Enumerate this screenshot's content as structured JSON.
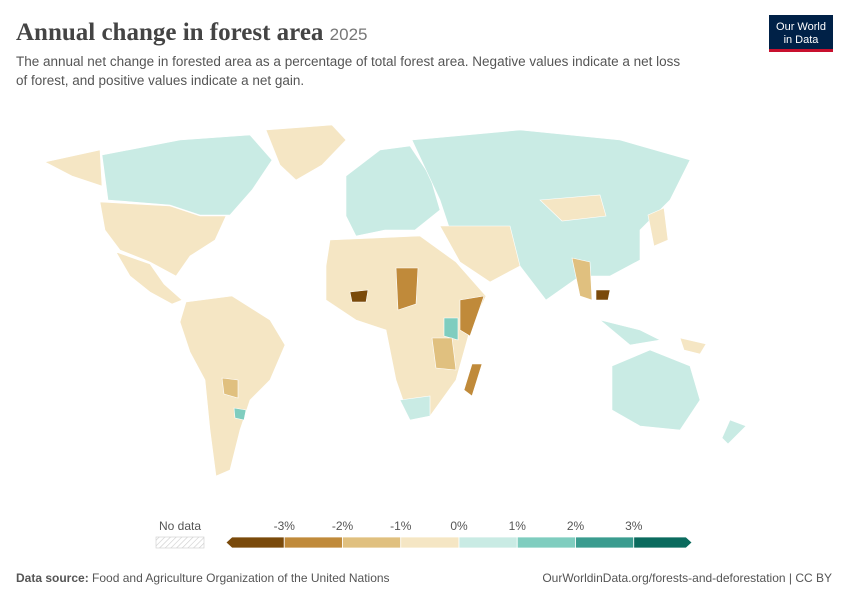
{
  "header": {
    "title": "Annual change in forest area",
    "year": "2025",
    "subtitle_lines": [
      "The annual net change in forested area as a percentage of total forest area. Negative values indicate a net loss",
      "of forest, and positive values indicate a net gain."
    ],
    "logo_lines": [
      "Our World",
      "in Data"
    ]
  },
  "legend": {
    "no_data": "No data",
    "labels": [
      "-3%",
      "-2%",
      "-1%",
      "0%",
      "1%",
      "2%",
      "3%"
    ],
    "colors": [
      "#7a4a0b",
      "#c08a3a",
      "#e0c07f",
      "#f5e6c4",
      "#c9ebe4",
      "#7fcdbf",
      "#3a9c8f",
      "#0b6b5e"
    ]
  },
  "footer": {
    "source_label": "Data source:",
    "source": "Food and Agriculture Organization of the United Nations",
    "url": "OurWorldinData.org/forests-and-deforestation | CC BY"
  }
}
